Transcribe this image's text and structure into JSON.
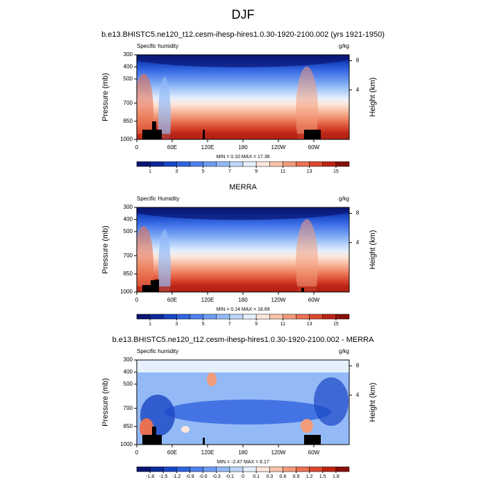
{
  "title": "DJF",
  "chart_data": [
    {
      "type": "contour",
      "title": "b.e13.BHISTC5.ne120_t12.cesm-ihesp-hires1.0.30-1920-2100.002 (yrs 1921-1950)",
      "left_label": "Specific humidity",
      "units": "g/kg",
      "ylabel": "Pressure (mb)",
      "y2label": "Height (km)",
      "xlim": [
        0,
        360
      ],
      "xticks": [
        0,
        {
          "value": 60,
          "label": "60E"
        },
        {
          "value": 120,
          "label": "120E"
        },
        180,
        {
          "value": 240,
          "label": "120W"
        },
        {
          "value": 300,
          "label": "60W"
        }
      ],
      "ylim": [
        1000,
        300
      ],
      "yticks": [
        300,
        400,
        500,
        700,
        850,
        1000
      ],
      "y2ticks": [
        4,
        8
      ],
      "stats": "MIN =  0.10  MAX = 17.36",
      "colorbar": {
        "colors": [
          "#0a1670",
          "#0c2a9a",
          "#1a46c4",
          "#3163de",
          "#4f80ec",
          "#6e9cf2",
          "#93baf6",
          "#bcd6fa",
          "#e6f0fd",
          "#fde6da",
          "#f8c3ab",
          "#f29c7c",
          "#e87152",
          "#d9482e",
          "#bb2516",
          "#861007"
        ],
        "levels": [
          1,
          2,
          3,
          4,
          5,
          6,
          7,
          8,
          9,
          10,
          11,
          12,
          13,
          14,
          15
        ],
        "ticks": [
          1,
          3,
          5,
          7,
          9,
          11,
          13,
          15
        ]
      }
    },
    {
      "type": "contour",
      "title": "MERRA",
      "left_label": "Specific Humidity",
      "units": "g/kg",
      "ylabel": "Pressure (mb)",
      "y2label": "Height (km)",
      "xlim": [
        0,
        360
      ],
      "xticks": [
        0,
        {
          "value": 60,
          "label": "60E"
        },
        {
          "value": 120,
          "label": "120E"
        },
        180,
        {
          "value": 240,
          "label": "120W"
        },
        {
          "value": 300,
          "label": "60W"
        }
      ],
      "ylim": [
        1000,
        300
      ],
      "yticks": [
        300,
        400,
        500,
        700,
        850,
        1000
      ],
      "y2ticks": [
        4,
        8
      ],
      "stats": "MIN =  0.14  MAX = 18.69",
      "colorbar": {
        "colors": [
          "#0a1670",
          "#0c2a9a",
          "#1a46c4",
          "#3163de",
          "#4f80ec",
          "#6e9cf2",
          "#93baf6",
          "#bcd6fa",
          "#e6f0fd",
          "#fde6da",
          "#f8c3ab",
          "#f29c7c",
          "#e87152",
          "#d9482e",
          "#bb2516",
          "#861007"
        ],
        "levels": [
          1,
          2,
          3,
          4,
          5,
          6,
          7,
          8,
          9,
          10,
          11,
          12,
          13,
          14,
          15
        ],
        "ticks": [
          1,
          3,
          5,
          7,
          9,
          11,
          13,
          15
        ]
      }
    },
    {
      "type": "contour",
      "title": "b.e13.BHISTC5.ne120_t12.cesm-ihesp-hires1.0.30-1920-2100.002 - MERRA",
      "left_label": "Specific humidity",
      "units": "g/kg",
      "ylabel": "Pressure (mb)",
      "y2label": "Height (km)",
      "xlim": [
        0,
        360
      ],
      "xticks": [
        0,
        {
          "value": 60,
          "label": "60E"
        },
        {
          "value": 120,
          "label": "120E"
        },
        180,
        {
          "value": 240,
          "label": "120W"
        },
        {
          "value": 300,
          "label": "60W"
        }
      ],
      "ylim": [
        1000,
        300
      ],
      "yticks": [
        300,
        400,
        500,
        700,
        850,
        1000
      ],
      "y2ticks": [
        4,
        8
      ],
      "stats": "MIN = -2.47  MAX =  6.17",
      "colorbar": {
        "colors": [
          "#0a1670",
          "#0c2a9a",
          "#1a46c4",
          "#3163de",
          "#4f80ec",
          "#6e9cf2",
          "#93baf6",
          "#bcd6fa",
          "#e6f0fd",
          "#fde6da",
          "#f8c3ab",
          "#f29c7c",
          "#e87152",
          "#d9482e",
          "#bb2516",
          "#861007"
        ],
        "levels": [
          -1.8,
          -1.5,
          -1.2,
          -0.9,
          -0.6,
          -0.3,
          -0.1,
          0,
          0.1,
          0.3,
          0.6,
          0.9,
          1.2,
          1.5,
          1.8
        ],
        "ticks": [
          -1.8,
          -1.5,
          -1.2,
          -0.9,
          -0.6,
          -0.3,
          -0.1,
          0,
          0.1,
          0.3,
          0.6,
          0.9,
          1.2,
          1.5,
          1.8
        ]
      }
    }
  ]
}
